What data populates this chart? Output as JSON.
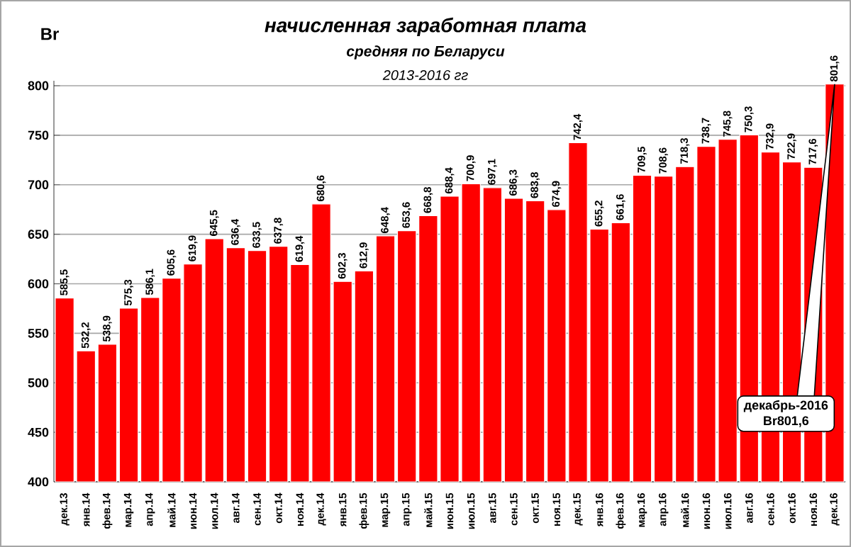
{
  "chart_data": {
    "type": "bar",
    "title": "начисленная заработная плата",
    "subtitle": "средняя по Беларуси",
    "ylabel": "Br",
    "categories": [
      "дек.13",
      "янв.14",
      "фев.14",
      "мар.14",
      "апр.14",
      "май.14",
      "июн.14",
      "июл.14",
      "авг.14",
      "сен.14",
      "окт.14",
      "ноя.14",
      "дек.14",
      "янв.15",
      "фев.15",
      "мар.15",
      "апр.15",
      "май.15",
      "июн.15",
      "июл.15",
      "авг.15",
      "сен.15",
      "окт.15",
      "ноя.15",
      "дек.15",
      "янв.16",
      "фев.16",
      "мар.16",
      "апр.16",
      "май.16",
      "июн.16",
      "июл.16",
      "авг.16",
      "сен.16",
      "окт.16",
      "ноя.16",
      "дек.16"
    ],
    "values": [
      585.5,
      532.2,
      538.9,
      575.3,
      586.1,
      605.6,
      619.9,
      645.5,
      636.4,
      633.5,
      637.8,
      619.4,
      680.6,
      602.3,
      612.9,
      648.4,
      653.6,
      668.8,
      688.4,
      700.9,
      697.1,
      686.3,
      683.8,
      674.9,
      742.4,
      655.2,
      661.6,
      709.5,
      708.6,
      718.3,
      738.7,
      745.8,
      750.3,
      732.9,
      722.9,
      717.6,
      801.6
    ],
    "value_labels": [
      "585,5",
      "532,2",
      "538,9",
      "575,3",
      "586,1",
      "605,6",
      "619,9",
      "645,5",
      "636,4",
      "633,5",
      "637,8",
      "619,4",
      "680,6",
      "602,3",
      "612,9",
      "648,4",
      "653,6",
      "668,8",
      "688,4",
      "700,9",
      "697,1",
      "686,3",
      "683,8",
      "674,9",
      "742,4",
      "655,2",
      "661,6",
      "709,5",
      "708,6",
      "718,3",
      "738,7",
      "745,8",
      "750,3",
      "732,9",
      "722,9",
      "717,6",
      "801,6"
    ],
    "color": "#ff0000",
    "ylim": [
      400,
      805
    ],
    "yticks": [
      400,
      450,
      500,
      550,
      600,
      650,
      700,
      750,
      800
    ],
    "grid": "y",
    "annotations": [
      "2013-2016 гг",
      {
        "text": "декабрь-2016 Br801,6",
        "x": "дек.16",
        "y": 801.6
      }
    ]
  }
}
